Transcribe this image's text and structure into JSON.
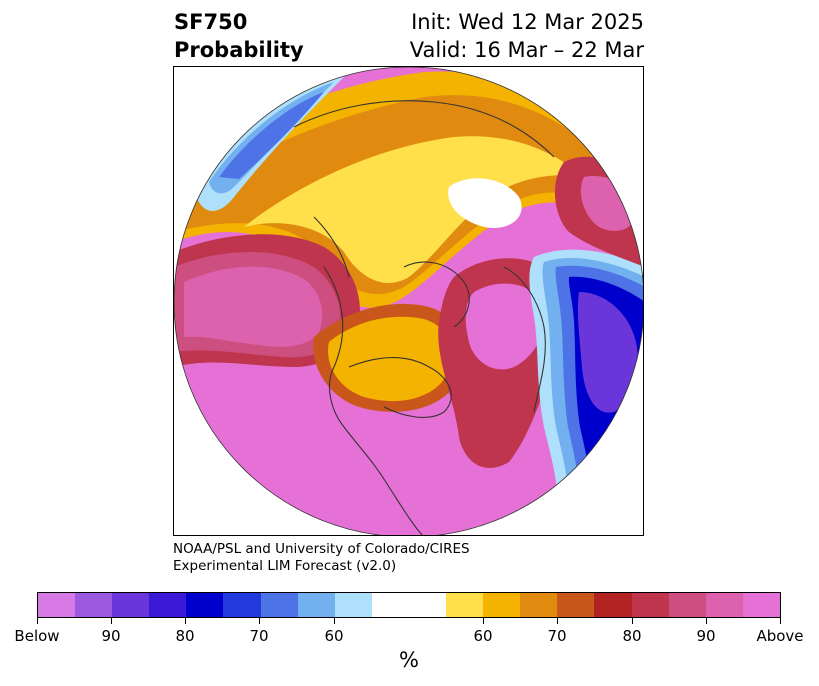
{
  "header": {
    "product_line1": "SF750",
    "product_line2": "Probability",
    "init_text": "Init: Wed 12 Mar 2025",
    "valid_text": "Valid: 16 Mar – 22 Mar"
  },
  "credit": {
    "line1": "NOAA/PSL and University of Colorado/CIRES",
    "line2": "Experimental LIM Forecast (v2.0)"
  },
  "colorbar": {
    "unit": "%",
    "colors": [
      "#d77ae6",
      "#9b59e0",
      "#6a36d9",
      "#3a1ad6",
      "#0000cc",
      "#2239db",
      "#4d73e6",
      "#72b0f0",
      "#aee0fb",
      "#ffffff",
      "#ffffff",
      "#ffe04a",
      "#f3b300",
      "#e08a10",
      "#c9561a",
      "#b22222",
      "#c0354e",
      "#cc4f80",
      "#dc62ad",
      "#e571d6"
    ],
    "tick_labels": [
      "Below",
      "90",
      "80",
      "70",
      "60",
      "60",
      "70",
      "80",
      "90",
      "Above"
    ]
  },
  "map_colors": {
    "above_max": "#e571d6",
    "above_90": "#dc62ad",
    "above_85": "#cc4f80",
    "above_80": "#c0354e",
    "above_75": "#b22222",
    "above_70": "#c9561a",
    "above_65": "#e08a10",
    "above_60": "#f3b300",
    "above_55": "#ffe04a",
    "below_55": "#aee0fb",
    "below_60": "#72b0f0",
    "below_65": "#4d73e6",
    "below_70": "#2239db",
    "below_75": "#0000cc",
    "below_80": "#3a1ad6",
    "below_85": "#6a36d9",
    "coastline": "#333333"
  }
}
